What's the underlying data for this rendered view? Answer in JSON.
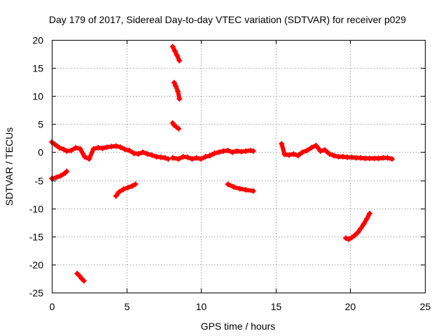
{
  "chart_data": {
    "type": "scatter",
    "title": "Day 179 of 2017, Sidereal Day-to-day VTEC variation (SDTVAR) for receiver p029",
    "xlabel": "GPS time / hours",
    "ylabel": "SDTVAR / TECUs",
    "xlim": [
      0,
      25
    ],
    "ylim": [
      -25,
      20
    ],
    "xticks": [
      0,
      5,
      10,
      15,
      20,
      25
    ],
    "yticks": [
      -25,
      -20,
      -15,
      -10,
      -5,
      0,
      5,
      10,
      15,
      20
    ],
    "xtick_labels": [
      "0",
      "5",
      "10",
      "15",
      "20",
      "25"
    ],
    "ytick_labels": [
      "-25",
      "-20",
      "-15",
      "-10",
      "-5",
      "0",
      "5",
      "10",
      "15",
      "20"
    ],
    "grid": true,
    "marker": "+",
    "color": "#ff0000",
    "series": [
      {
        "name": "main-band-1",
        "x": [
          0,
          0.2,
          0.5,
          0.8,
          1.0,
          1.3,
          1.6,
          1.9,
          2.2,
          2.5,
          2.8,
          3.1,
          3.4,
          3.7,
          4.0,
          4.3,
          4.6,
          4.9,
          5.2,
          5.5,
          5.8,
          6.1,
          6.4,
          6.7,
          7.0,
          7.3,
          7.6,
          7.8
        ],
        "y": [
          1.8,
          1.4,
          0.8,
          0.5,
          0.2,
          0.3,
          0.8,
          0.6,
          -0.8,
          -1.2,
          0.6,
          0.8,
          0.7,
          0.9,
          1.0,
          1.1,
          0.9,
          0.5,
          0.3,
          -0.2,
          -0.3,
          0.0,
          -0.3,
          -0.5,
          -0.8,
          -0.9,
          -1.0,
          -1.2
        ]
      },
      {
        "name": "main-band-2",
        "x": [
          8.1,
          8.5,
          8.8,
          9.1,
          9.4,
          9.7,
          10.0,
          10.3,
          10.6,
          10.9,
          11.2,
          11.5,
          11.8,
          12.1,
          12.4,
          12.7,
          13.0,
          13.3,
          13.5
        ],
        "y": [
          -1.0,
          -1.2,
          -0.8,
          -0.9,
          -1.2,
          -1.0,
          -1.2,
          -0.8,
          -0.6,
          -0.2,
          0.0,
          0.2,
          0.3,
          0.0,
          0.2,
          0.1,
          0.2,
          0.3,
          0.2
        ]
      },
      {
        "name": "main-band-3",
        "x": [
          15.4,
          15.6,
          15.9,
          16.2,
          16.5,
          16.8,
          17.1,
          17.4,
          17.7,
          18.0,
          18.3,
          18.6,
          18.9,
          19.2,
          19.5,
          19.8,
          20.1,
          20.4,
          20.7,
          21.0,
          21.3,
          21.6,
          21.9,
          22.2,
          22.5,
          22.8
        ],
        "y": [
          1.5,
          -0.4,
          -0.5,
          -0.3,
          -0.6,
          0.0,
          0.3,
          0.8,
          1.2,
          0.2,
          0.4,
          -0.3,
          -0.6,
          -0.8,
          -0.8,
          -0.9,
          -0.9,
          -1.0,
          -1.0,
          -1.1,
          -1.1,
          -1.1,
          -1.1,
          -1.0,
          -1.0,
          -1.2
        ]
      },
      {
        "name": "segment-a",
        "x": [
          0.0,
          0.3,
          0.6,
          0.9,
          1.0
        ],
        "y": [
          -4.7,
          -4.5,
          -4.2,
          -3.7,
          -3.4
        ]
      },
      {
        "name": "segment-b",
        "x": [
          1.7,
          1.85,
          2.0,
          2.15
        ],
        "y": [
          -21.6,
          -22.0,
          -22.5,
          -22.9
        ]
      },
      {
        "name": "segment-c",
        "x": [
          4.3,
          4.5,
          4.8,
          5.1,
          5.4,
          5.6
        ],
        "y": [
          -7.8,
          -7.1,
          -6.6,
          -6.3,
          -6.0,
          -5.7
        ]
      },
      {
        "name": "segment-d",
        "x": [
          8.1,
          8.2,
          8.35,
          8.5
        ],
        "y": [
          5.2,
          4.8,
          4.5,
          4.2
        ]
      },
      {
        "name": "segment-e",
        "x": [
          8.2,
          8.3,
          8.45,
          8.55
        ],
        "y": [
          12.4,
          11.8,
          10.8,
          9.5
        ]
      },
      {
        "name": "segment-f",
        "x": [
          8.1,
          8.25,
          8.4,
          8.55
        ],
        "y": [
          18.8,
          18.0,
          17.2,
          16.3
        ]
      },
      {
        "name": "segment-g",
        "x": [
          11.8,
          12.2,
          12.6,
          13.0,
          13.5
        ],
        "y": [
          -5.7,
          -6.2,
          -6.5,
          -6.7,
          -6.9
        ]
      },
      {
        "name": "segment-h",
        "x": [
          19.7,
          19.9,
          20.1,
          20.3,
          20.5,
          20.7,
          20.9,
          21.1,
          21.3
        ],
        "y": [
          -15.3,
          -15.5,
          -15.2,
          -14.8,
          -14.3,
          -13.6,
          -12.8,
          -11.9,
          -10.9
        ]
      }
    ]
  }
}
